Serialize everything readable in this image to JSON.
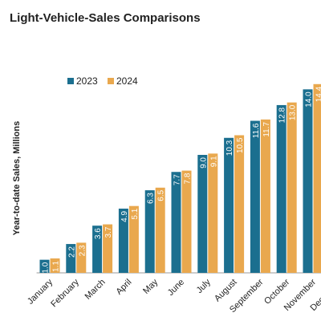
{
  "chart_data": {
    "type": "bar",
    "title": "Light-Vehicle-Sales Comparisons",
    "y_label": "Year-to-date Sales, Millions",
    "categories": [
      "January",
      "February",
      "March",
      "April",
      "May",
      "June",
      "July",
      "August",
      "September",
      "October",
      "November",
      "December"
    ],
    "series": [
      {
        "name": "2023",
        "color": "#1b6f8f",
        "values": [
          1.0,
          2.2,
          3.6,
          4.9,
          6.3,
          7.7,
          9.0,
          10.3,
          11.6,
          12.8,
          14.0,
          null
        ],
        "value_labels": [
          "1.0",
          "2.2",
          "3.6",
          "4.9",
          "6.3",
          "7.7",
          "9.0",
          "10.3",
          "11.6",
          "12.8",
          "14.0",
          null
        ]
      },
      {
        "name": "2024",
        "color": "#e9a84e",
        "values": [
          1.1,
          2.3,
          3.7,
          5.1,
          6.5,
          7.8,
          9.1,
          10.5,
          11.7,
          13.0,
          14.4,
          null
        ],
        "value_labels": [
          "1.1",
          "2.3",
          "3.7",
          "5.1",
          "6.5",
          "7.8",
          "9.1",
          "10.5",
          "11.7",
          "13.0",
          "14.4",
          null
        ]
      }
    ],
    "ylim": [
      0,
      15
    ],
    "legend": "top-left"
  }
}
